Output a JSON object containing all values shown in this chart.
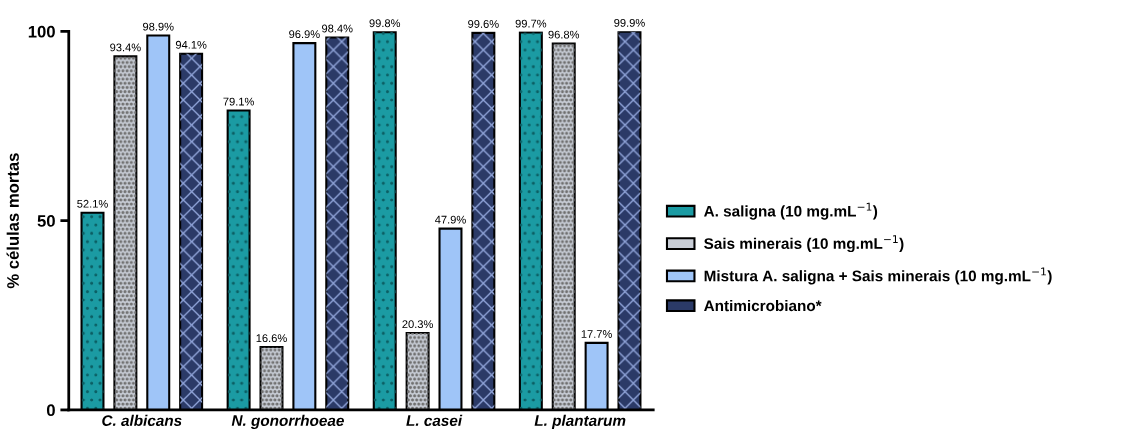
{
  "chart_data": {
    "type": "bar",
    "ylabel": "% células mortas",
    "categories": [
      "C. albicans",
      "N. gonorrhoeae",
      "L. casei",
      "L. plantarum"
    ],
    "series": [
      {
        "name": "A. saligna (10 mg.mL$^{−1}$)",
        "color": "#1b9ba3",
        "values": [
          52.1,
          79.1,
          99.8,
          99.7
        ],
        "value_labels": [
          "52.1%",
          "79.1%",
          "99.8%",
          "99.7%"
        ]
      },
      {
        "name": "Sais minerais (10 mg.mL$^{−1}$)",
        "color": "#c8cdd6",
        "values": [
          93.4,
          16.6,
          20.3,
          96.8
        ],
        "value_labels": [
          "93.4%",
          "16.6%",
          "20.3%",
          "96.8%"
        ]
      },
      {
        "name": "Mistura A. saligna + Sais minerais (10 mg.mL$^{−1}$)",
        "color": "#9fc5f8",
        "values": [
          98.9,
          96.9,
          47.9,
          17.7
        ],
        "value_labels": [
          "98.9%",
          "96.9%",
          "47.9%",
          "17.7%"
        ]
      },
      {
        "name": "Antimicrobiano*",
        "color": "#2b3a67",
        "values": [
          94.1,
          98.4,
          99.6,
          99.9
        ],
        "value_labels": [
          "94.1%",
          "98.4%",
          "99.6%",
          "99.9%"
        ]
      }
    ],
    "ylim": [
      0,
      100
    ],
    "yticks": [
      0,
      50,
      100
    ],
    "grid": false,
    "legend": "right"
  }
}
